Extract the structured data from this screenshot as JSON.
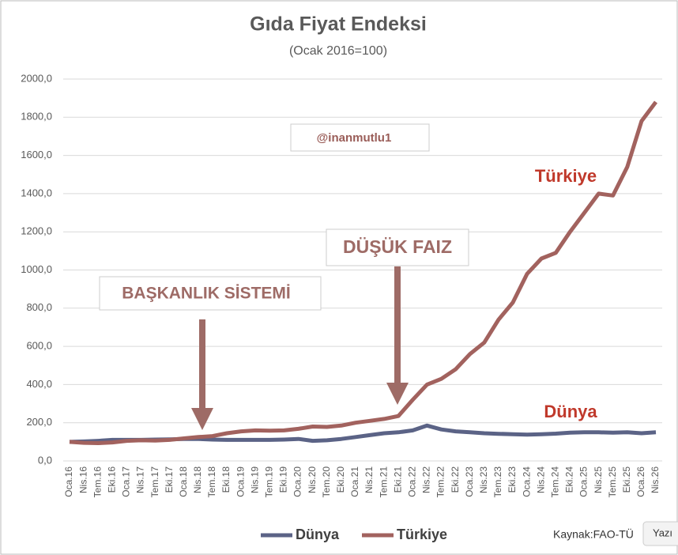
{
  "chart_data": {
    "type": "line",
    "title": "Gıda Fiyat Endeksi",
    "subtitle": "(Ocak 2016=100)",
    "categories": [
      "Oca.16",
      "Nis.16",
      "Tem.16",
      "Eki.16",
      "Oca.17",
      "Nis.17",
      "Tem.17",
      "Eki.17",
      "Oca.18",
      "Nis.18",
      "Tem.18",
      "Eki.18",
      "Oca.19",
      "Nis.19",
      "Tem.19",
      "Eki.19",
      "Oca.20",
      "Nis.20",
      "Tem.20",
      "Eki.20",
      "Oca.21",
      "Nis.21",
      "Tem.21",
      "Eki.21",
      "Oca.22",
      "Nis.22",
      "Tem.22",
      "Eki.22",
      "Oca.23",
      "Nis.23",
      "Tem.23",
      "Eki.23",
      "Oca.24",
      "Nis.24",
      "Tem.24",
      "Eki.24",
      "Oca.25",
      "Nis.25",
      "Tem.25",
      "Eki.25",
      "Oca.26",
      "Nis.26"
    ],
    "series": [
      {
        "name": "Dünya",
        "color": "#5b6386",
        "values": [
          100,
          102,
          105,
          110,
          110,
          110,
          112,
          113,
          115,
          115,
          112,
          110,
          110,
          110,
          110,
          112,
          115,
          105,
          108,
          115,
          125,
          135,
          145,
          150,
          160,
          185,
          165,
          155,
          150,
          145,
          142,
          140,
          138,
          140,
          143,
          148,
          150,
          150,
          148,
          150,
          145,
          150
        ]
      },
      {
        "name": "Türkiye",
        "color": "#a2625e",
        "values": [
          100,
          95,
          93,
          97,
          105,
          108,
          107,
          110,
          118,
          125,
          130,
          145,
          155,
          160,
          158,
          160,
          168,
          180,
          178,
          185,
          200,
          210,
          220,
          235,
          320,
          400,
          430,
          480,
          560,
          620,
          740,
          830,
          980,
          1060,
          1090,
          1200,
          1300,
          1400,
          1390,
          1540,
          1780,
          1880
        ]
      }
    ],
    "ylim": [
      0,
      2000
    ],
    "yticks": [
      {
        "value": 0,
        "label": "0,0"
      },
      {
        "value": 200,
        "label": "200,0"
      },
      {
        "value": 400,
        "label": "400,0"
      },
      {
        "value": 600,
        "label": "600,0"
      },
      {
        "value": 800,
        "label": "800,0"
      },
      {
        "value": 1000,
        "label": "1000,0"
      },
      {
        "value": 1200,
        "label": "1200,0"
      },
      {
        "value": 1400,
        "label": "1400,0"
      },
      {
        "value": 1600,
        "label": "1600,0"
      },
      {
        "value": 1800,
        "label": "1800,0"
      },
      {
        "value": 2000,
        "label": "2000,0"
      }
    ],
    "grid": true,
    "legend": "bottom",
    "annotations": [
      "@inanmutlu1",
      "Türkiye",
      "Dünya",
      "DÜŞÜK FAIZ",
      "BAŞKANLIK SİSTEMİ",
      "Kaynak:FAO-TÜ",
      "Yazı"
    ]
  }
}
